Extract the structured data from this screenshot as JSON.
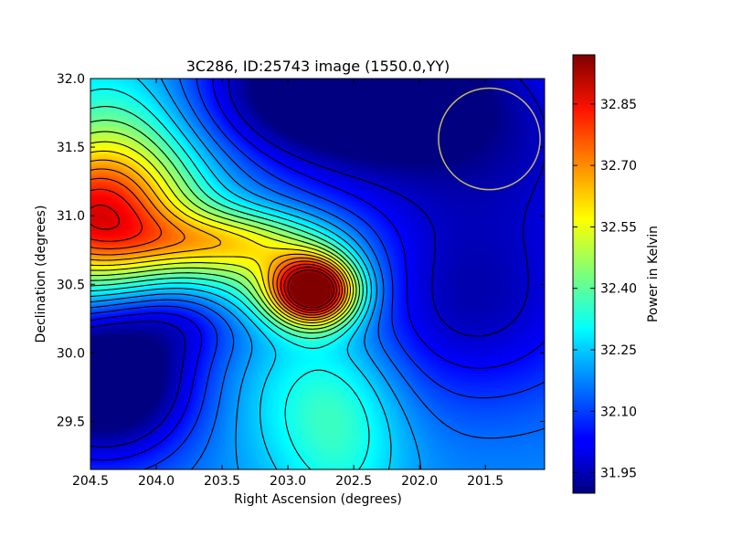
{
  "chart_data": {
    "type": "heatmap",
    "title": "3C286, ID:25743 image (1550.0,YY)",
    "xlabel": "Right Ascension (degrees)",
    "ylabel": "Declination (degrees)",
    "xlim": [
      204.5,
      201.05
    ],
    "ylim": [
      29.15,
      32.0
    ],
    "x_ticks": [
      204.5,
      204.0,
      203.5,
      203.0,
      202.5,
      202.0,
      201.5
    ],
    "x_tick_labels": [
      "204.5",
      "204.0",
      "203.5",
      "203.0",
      "202.5",
      "202.0",
      "201.5"
    ],
    "y_ticks": [
      29.5,
      30.0,
      30.5,
      31.0,
      31.5,
      32.0
    ],
    "y_tick_labels": [
      "29.5",
      "30.0",
      "30.5",
      "31.0",
      "31.5",
      "32.0"
    ],
    "colormap": "jet",
    "colorbar": {
      "label": "Power in Kelvin",
      "range": [
        31.9,
        32.97
      ],
      "ticks": [
        31.95,
        32.1,
        32.25,
        32.4,
        32.55,
        32.7,
        32.85
      ],
      "tick_labels": [
        "31.95",
        "32.10",
        "32.25",
        "32.40",
        "32.55",
        "32.70",
        "32.85"
      ]
    },
    "grid": false,
    "features": [
      {
        "type": "peak",
        "ra": 202.8,
        "dec": 30.45,
        "value": 32.97
      },
      {
        "type": "peak",
        "ra": 204.5,
        "dec": 30.97,
        "value": 32.74
      },
      {
        "type": "trough",
        "ra": 202.6,
        "dec": 31.95,
        "value": 31.9
      },
      {
        "type": "trough",
        "ra": 204.4,
        "dec": 29.8,
        "value": 31.9
      }
    ],
    "beam_circle": {
      "ra": 201.47,
      "dec": 31.56,
      "radius_deg": 0.37,
      "color": "#c8b86a"
    }
  }
}
